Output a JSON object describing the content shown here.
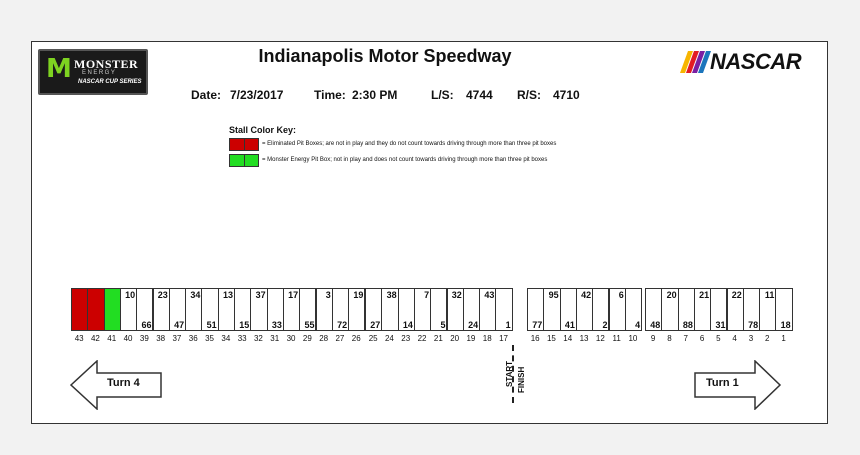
{
  "title": "Indianapolis Motor Speedway",
  "logos": {
    "monster_mark": "M",
    "monster_word": "MONSTER",
    "monster_sub": "ENERGY",
    "monster_series": "NASCAR CUP SERIES",
    "nascar_word": "NASCAR",
    "nascar_stripe_colors": [
      "#f7b500",
      "#e31b23",
      "#7a1fa2",
      "#1b75bc"
    ]
  },
  "info": {
    "date_label": "Date:",
    "date_value": "7/23/2017",
    "time_label": "Time:",
    "time_value": "2:30 PM",
    "ls_label": "L/S:",
    "ls_value": "4744",
    "rs_label": "R/S:",
    "rs_value": "4710"
  },
  "key": {
    "title": "Stall Color Key:",
    "eliminated_color": "#cc0000",
    "eliminated_text": "= Eliminated Pit Boxes; are not in play and they do not count towards driving through more than three pit boxes",
    "monster_color": "#22dd22",
    "monster_text": "= Monster Energy Pit Box; not in play and does not count towards driving through more than three pit boxes"
  },
  "stalls": [
    {
      "pit": "43",
      "team": "",
      "status": "eliminated"
    },
    {
      "pit": "42",
      "team": "",
      "status": "eliminated"
    },
    {
      "pit": "41",
      "team": "",
      "status": "monster"
    },
    {
      "pit": "40",
      "team": "10",
      "status": "normal"
    },
    {
      "pit": "39",
      "team": "66",
      "status": "normal"
    },
    {
      "pit": "38",
      "team": "23",
      "status": "normal"
    },
    {
      "pit": "37",
      "team": "47",
      "status": "normal"
    },
    {
      "pit": "36",
      "team": "34",
      "status": "normal"
    },
    {
      "pit": "35",
      "team": "51",
      "status": "normal"
    },
    {
      "pit": "34",
      "team": "13",
      "status": "normal"
    },
    {
      "pit": "33",
      "team": "15",
      "status": "normal"
    },
    {
      "pit": "32",
      "team": "37",
      "status": "normal"
    },
    {
      "pit": "31",
      "team": "33",
      "status": "normal"
    },
    {
      "pit": "30",
      "team": "17",
      "status": "normal"
    },
    {
      "pit": "29",
      "team": "55",
      "status": "normal"
    },
    {
      "pit": "28",
      "team": "3",
      "status": "normal"
    },
    {
      "pit": "27",
      "team": "72",
      "status": "normal"
    },
    {
      "pit": "26",
      "team": "19",
      "status": "normal"
    },
    {
      "pit": "25",
      "team": "27",
      "status": "normal"
    },
    {
      "pit": "24",
      "team": "38",
      "status": "normal"
    },
    {
      "pit": "23",
      "team": "14",
      "status": "normal"
    },
    {
      "pit": "22",
      "team": "7",
      "status": "normal"
    },
    {
      "pit": "21",
      "team": "5",
      "status": "normal"
    },
    {
      "pit": "20",
      "team": "32",
      "status": "normal"
    },
    {
      "pit": "19",
      "team": "24",
      "status": "normal"
    },
    {
      "pit": "18",
      "team": "43",
      "status": "normal"
    },
    {
      "pit": "17",
      "team": "1",
      "status": "normal"
    },
    {
      "pit": "16",
      "team": "77",
      "status": "normal"
    },
    {
      "pit": "15",
      "team": "95",
      "status": "normal"
    },
    {
      "pit": "14",
      "team": "41",
      "status": "normal"
    },
    {
      "pit": "13",
      "team": "42",
      "status": "normal"
    },
    {
      "pit": "12",
      "team": "2",
      "status": "normal"
    },
    {
      "pit": "11",
      "team": "6",
      "status": "normal"
    },
    {
      "pit": "10",
      "team": "4",
      "status": "normal"
    },
    {
      "pit": "9",
      "team": "48",
      "status": "normal"
    },
    {
      "pit": "8",
      "team": "20",
      "status": "normal"
    },
    {
      "pit": "7",
      "team": "88",
      "status": "normal"
    },
    {
      "pit": "6",
      "team": "21",
      "status": "normal"
    },
    {
      "pit": "5",
      "team": "31",
      "status": "normal"
    },
    {
      "pit": "4",
      "team": "22",
      "status": "normal"
    },
    {
      "pit": "3",
      "team": "78",
      "status": "normal"
    },
    {
      "pit": "2",
      "team": "11",
      "status": "normal"
    },
    {
      "pit": "1",
      "team": "18",
      "status": "normal"
    }
  ],
  "turn4": "Turn 4",
  "turn1": "Turn 1",
  "start": "START",
  "finish": "FINISH"
}
